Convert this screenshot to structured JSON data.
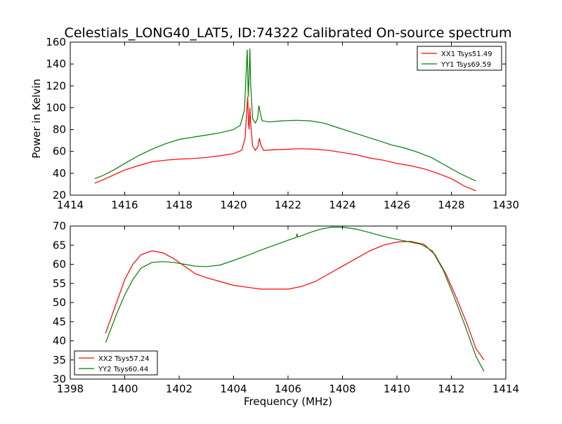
{
  "figure": {
    "title": "Celestials_LONG40_LAT5, ID:74322 Calibrated On-source spectrum",
    "ylabel": "Power in Kelvin",
    "xlabel": "Frequency (MHz)"
  },
  "chart_data": [
    {
      "type": "line",
      "xlim": [
        1414,
        1430
      ],
      "ylim": [
        20,
        160
      ],
      "xticks": [
        1414,
        1416,
        1418,
        1420,
        1422,
        1424,
        1426,
        1428,
        1430
      ],
      "yticks": [
        20,
        40,
        60,
        80,
        100,
        120,
        140,
        160
      ],
      "legend_position": "top-right",
      "series": [
        {
          "name": "XX1 Tsys51.49",
          "color": "#ff0000",
          "points": [
            [
              1414.9,
              31
            ],
            [
              1415.2,
              34
            ],
            [
              1415.6,
              38.5
            ],
            [
              1416.0,
              43
            ],
            [
              1416.5,
              47
            ],
            [
              1417.0,
              50.5
            ],
            [
              1417.5,
              52
            ],
            [
              1418.0,
              53
            ],
            [
              1418.5,
              53.5
            ],
            [
              1419.0,
              54.5
            ],
            [
              1419.5,
              56
            ],
            [
              1420.0,
              58
            ],
            [
              1420.3,
              61
            ],
            [
              1420.42,
              72
            ],
            [
              1420.48,
              95
            ],
            [
              1420.52,
              110
            ],
            [
              1420.55,
              85
            ],
            [
              1420.57,
              80
            ],
            [
              1420.6,
              100
            ],
            [
              1420.63,
              85
            ],
            [
              1420.7,
              65
            ],
            [
              1420.8,
              61
            ],
            [
              1420.9,
              65
            ],
            [
              1420.95,
              72
            ],
            [
              1421.0,
              66
            ],
            [
              1421.1,
              61
            ],
            [
              1421.5,
              61.5
            ],
            [
              1422.0,
              62
            ],
            [
              1422.5,
              62.5
            ],
            [
              1423.0,
              62
            ],
            [
              1423.5,
              61
            ],
            [
              1424.0,
              59
            ],
            [
              1424.5,
              57
            ],
            [
              1425.0,
              54
            ],
            [
              1425.5,
              52
            ],
            [
              1426.0,
              49
            ],
            [
              1426.5,
              47
            ],
            [
              1427.0,
              44
            ],
            [
              1427.5,
              40
            ],
            [
              1428.0,
              35
            ],
            [
              1428.5,
              28
            ],
            [
              1428.9,
              24
            ]
          ]
        },
        {
          "name": "YY1 Tsys69.59",
          "color": "#008000",
          "points": [
            [
              1414.9,
              35
            ],
            [
              1415.2,
              38
            ],
            [
              1415.6,
              43
            ],
            [
              1416.0,
              49
            ],
            [
              1416.5,
              56
            ],
            [
              1417.0,
              62
            ],
            [
              1417.5,
              67
            ],
            [
              1418.0,
              71
            ],
            [
              1418.5,
              73
            ],
            [
              1419.0,
              75
            ],
            [
              1419.5,
              77
            ],
            [
              1420.0,
              80
            ],
            [
              1420.25,
              84
            ],
            [
              1420.4,
              98
            ],
            [
              1420.45,
              125
            ],
            [
              1420.5,
              153
            ],
            [
              1420.54,
              110
            ],
            [
              1420.57,
              128
            ],
            [
              1420.6,
              154
            ],
            [
              1420.63,
              120
            ],
            [
              1420.7,
              90
            ],
            [
              1420.8,
              86
            ],
            [
              1420.88,
              90
            ],
            [
              1420.93,
              102
            ],
            [
              1420.98,
              95
            ],
            [
              1421.05,
              88
            ],
            [
              1421.3,
              87
            ],
            [
              1421.8,
              88
            ],
            [
              1422.3,
              88.5
            ],
            [
              1422.8,
              88
            ],
            [
              1423.3,
              86
            ],
            [
              1423.8,
              82
            ],
            [
              1424.3,
              78
            ],
            [
              1424.8,
              74
            ],
            [
              1425.3,
              70
            ],
            [
              1425.8,
              66
            ],
            [
              1426.3,
              63
            ],
            [
              1426.8,
              59
            ],
            [
              1427.3,
              54
            ],
            [
              1427.8,
              47
            ],
            [
              1428.3,
              40
            ],
            [
              1428.9,
              33
            ]
          ]
        }
      ]
    },
    {
      "type": "line",
      "xlim": [
        1398,
        1414
      ],
      "ylim": [
        30,
        70
      ],
      "xticks": [
        1398,
        1400,
        1402,
        1404,
        1406,
        1408,
        1410,
        1412,
        1414
      ],
      "yticks": [
        30,
        35,
        40,
        45,
        50,
        55,
        60,
        65,
        70
      ],
      "legend_position": "bottom-left",
      "series": [
        {
          "name": "XX2 Tsys57.24",
          "color": "#ff0000",
          "points": [
            [
              1399.3,
              42
            ],
            [
              1399.7,
              50
            ],
            [
              1400.0,
              56
            ],
            [
              1400.3,
              60
            ],
            [
              1400.6,
              62.5
            ],
            [
              1401.0,
              63.5
            ],
            [
              1401.4,
              63
            ],
            [
              1401.8,
              61.5
            ],
            [
              1402.2,
              59.5
            ],
            [
              1402.6,
              57.5
            ],
            [
              1403.0,
              56.5
            ],
            [
              1403.5,
              55.5
            ],
            [
              1404.0,
              54.5
            ],
            [
              1404.5,
              54
            ],
            [
              1405.0,
              53.5
            ],
            [
              1405.5,
              53.5
            ],
            [
              1406.0,
              53.5
            ],
            [
              1406.5,
              54.2
            ],
            [
              1407.0,
              55.5
            ],
            [
              1407.5,
              57.5
            ],
            [
              1408.0,
              59.5
            ],
            [
              1408.5,
              61.5
            ],
            [
              1409.0,
              63.5
            ],
            [
              1409.5,
              65
            ],
            [
              1410.0,
              65.8
            ],
            [
              1410.5,
              66
            ],
            [
              1411.0,
              65.2
            ],
            [
              1411.4,
              62.5
            ],
            [
              1411.8,
              57.5
            ],
            [
              1412.2,
              51
            ],
            [
              1412.6,
              44
            ],
            [
              1412.9,
              38
            ],
            [
              1413.2,
              35
            ]
          ]
        },
        {
          "name": "YY2 Tsys60.44",
          "color": "#008000",
          "points": [
            [
              1399.3,
              39.5
            ],
            [
              1399.7,
              47
            ],
            [
              1400.0,
              52
            ],
            [
              1400.3,
              56
            ],
            [
              1400.6,
              59
            ],
            [
              1401.0,
              60.5
            ],
            [
              1401.4,
              60.7
            ],
            [
              1401.8,
              60.5
            ],
            [
              1402.2,
              60
            ],
            [
              1402.6,
              59.5
            ],
            [
              1403.0,
              59.4
            ],
            [
              1403.5,
              59.8
            ],
            [
              1404.0,
              61
            ],
            [
              1404.5,
              62.3
            ],
            [
              1405.0,
              63.7
            ],
            [
              1405.5,
              65
            ],
            [
              1406.0,
              66.3
            ],
            [
              1406.3,
              67
            ],
            [
              1406.33,
              68
            ],
            [
              1406.36,
              67.1
            ],
            [
              1406.8,
              68.3
            ],
            [
              1407.2,
              69.2
            ],
            [
              1407.6,
              69.7
            ],
            [
              1408.0,
              69.7
            ],
            [
              1408.5,
              69.2
            ],
            [
              1409.0,
              68.3
            ],
            [
              1409.5,
              67.3
            ],
            [
              1410.0,
              66.5
            ],
            [
              1410.5,
              65.8
            ],
            [
              1410.9,
              65.2
            ],
            [
              1411.3,
              63.5
            ],
            [
              1411.7,
              58.5
            ],
            [
              1412.1,
              51.5
            ],
            [
              1412.5,
              44
            ],
            [
              1412.9,
              36
            ],
            [
              1413.2,
              32
            ]
          ]
        }
      ]
    }
  ]
}
